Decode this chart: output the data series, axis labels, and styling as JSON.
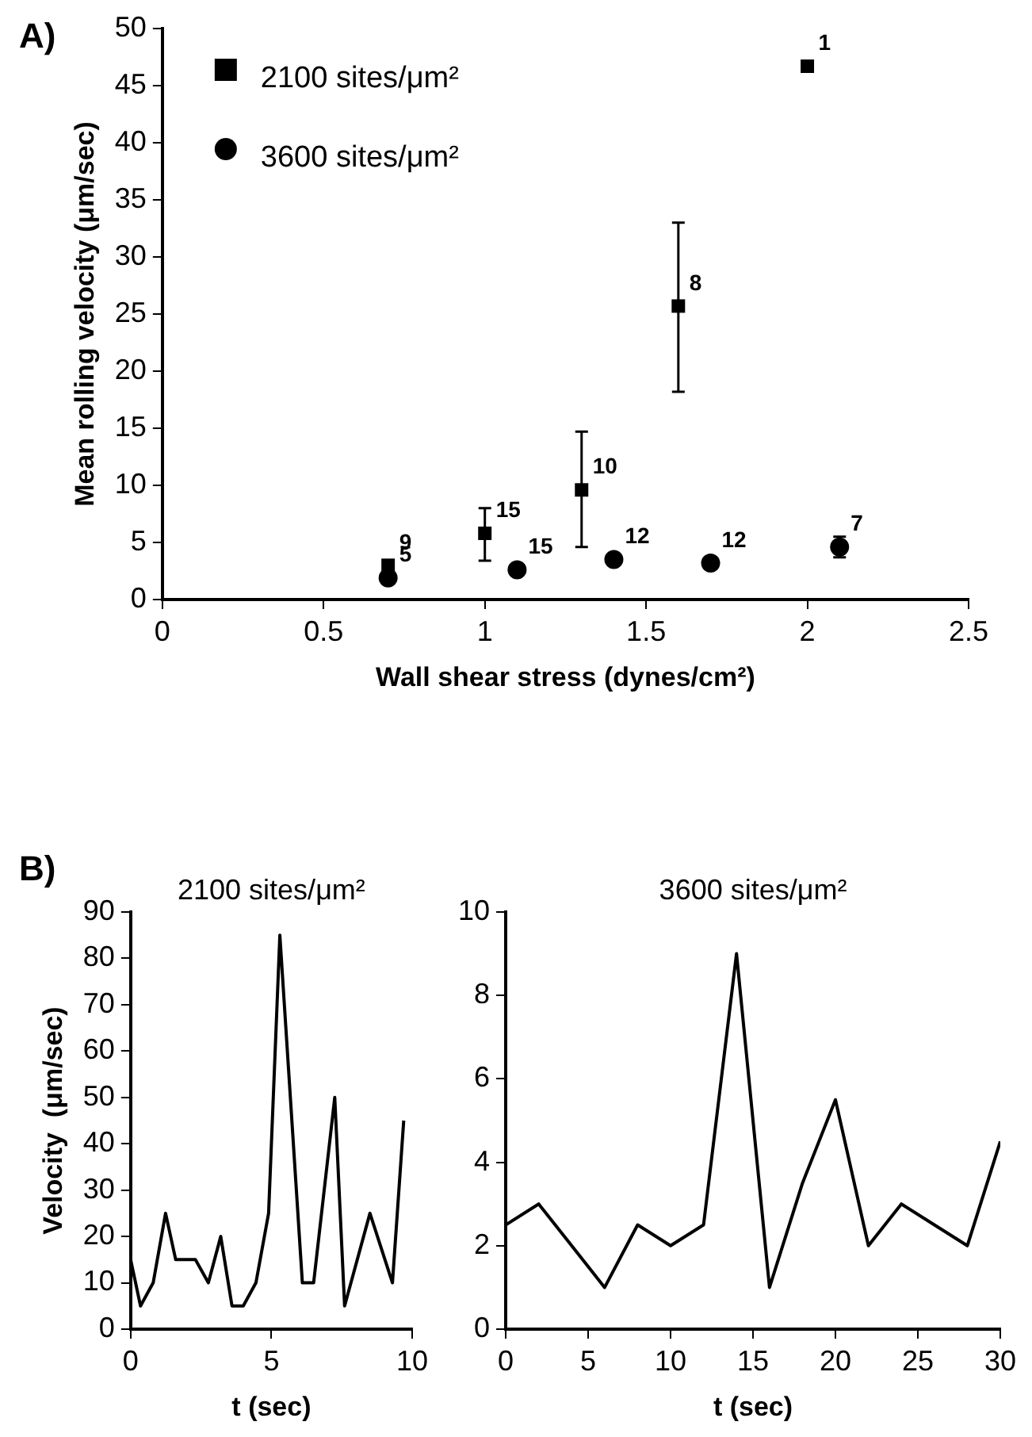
{
  "chart_data": [
    {
      "type": "scatter",
      "xlabel": "Wall shear stress (dynes/cm²)",
      "ylabel": "Mean rolling velocity (μm/sec)",
      "xlim": [
        0,
        2.5
      ],
      "xticks": [
        0,
        0.5,
        1,
        1.5,
        2,
        2.5
      ],
      "ylim": [
        0,
        50
      ],
      "yticks": [
        0,
        5,
        10,
        15,
        20,
        25,
        30,
        35,
        40,
        45,
        50
      ],
      "grid": false,
      "legend": "top left",
      "annotations": [
        "A)",
        {
          "text": "9",
          "x": 0.7,
          "y": 3
        },
        {
          "text": "15",
          "x": 1,
          "y": 5.8
        },
        {
          "text": "10",
          "x": 1.3,
          "y": 9.6
        },
        {
          "text": "8",
          "x": 1.6,
          "y": 25.7
        },
        {
          "text": "1",
          "x": 2,
          "y": 46.7
        },
        {
          "text": "5",
          "x": 0.7,
          "y": 1.9
        },
        {
          "text": "15",
          "x": 1.1,
          "y": 2.6
        },
        {
          "text": "12",
          "x": 1.4,
          "y": 3.5
        },
        {
          "text": "12",
          "x": 1.7,
          "y": 3.2
        },
        {
          "text": "7",
          "x": 2.1,
          "y": 4.6
        }
      ],
      "series": [
        {
          "name": "2100 sites/μm²",
          "color": "#000000",
          "marker": "square",
          "x": [
            0.7,
            1,
            1.3,
            1.6,
            2
          ],
          "values": [
            3,
            5.8,
            9.6,
            25.7,
            46.7
          ],
          "errors": [
            null,
            [
              3.4,
              8
            ],
            [
              4.6,
              14.7
            ],
            [
              18.2,
              33
            ],
            null
          ]
        },
        {
          "name": "3600 sites/μm²",
          "color": "#000000",
          "marker": "circle",
          "x": [
            0.7,
            1.1,
            1.4,
            1.7,
            2.1
          ],
          "values": [
            1.9,
            2.6,
            3.5,
            3.2,
            4.6
          ],
          "errors": [
            null,
            null,
            null,
            null,
            [
              3.7,
              5.5
            ]
          ]
        }
      ]
    },
    {
      "type": "line",
      "title": "2100 sites/μm²",
      "xlabel": "t (sec)",
      "ylabel": "Velocity  (μm/sec)",
      "xlim": [
        0,
        10
      ],
      "xticks": [
        0,
        5,
        10
      ],
      "ylim": [
        0,
        90
      ],
      "yticks": [
        0,
        10,
        20,
        30,
        40,
        50,
        60,
        70,
        80,
        90
      ],
      "grid": false,
      "marker": "none",
      "annotations": [
        "B)"
      ],
      "series": [
        {
          "color": "#000000",
          "x": [
            0,
            0.35,
            0.8,
            1.24,
            1.6,
            2.3,
            2.76,
            3.2,
            3.6,
            4.0,
            4.45,
            4.9,
            5.3,
            6.1,
            6.5,
            7.25,
            7.6,
            8.5,
            9.3,
            9.7
          ],
          "values": [
            15,
            5,
            10,
            25,
            15,
            15,
            10,
            20,
            5,
            5,
            10,
            25,
            85,
            10,
            10,
            50,
            5,
            25,
            10,
            45
          ]
        }
      ]
    },
    {
      "type": "line",
      "title": "3600 sites/μm²",
      "xlabel": "t (sec)",
      "xlim": [
        0,
        30
      ],
      "xticks": [
        0,
        5,
        10,
        15,
        20,
        25,
        30
      ],
      "ylim": [
        0,
        10
      ],
      "yticks": [
        0,
        2,
        4,
        6,
        8,
        10
      ],
      "grid": false,
      "marker": "none",
      "series": [
        {
          "color": "#000000",
          "x": [
            0,
            2,
            4,
            6,
            8,
            10,
            12,
            14,
            16,
            18,
            20,
            22,
            24,
            26,
            28,
            30
          ],
          "values": [
            2.5,
            3,
            2,
            1,
            2.5,
            2,
            2.5,
            9,
            1,
            3.5,
            5.5,
            2,
            3,
            2.5,
            2,
            4.5
          ]
        }
      ]
    }
  ]
}
